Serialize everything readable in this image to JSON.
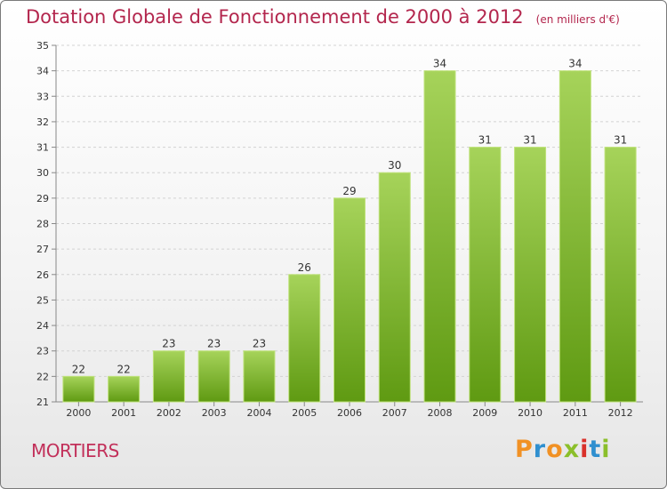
{
  "title": "Dotation Globale de Fonctionnement de 2000 à 2012",
  "unit_note": "(en milliers d'€)",
  "commune": "MORTIERS",
  "logo": {
    "letters": [
      "P",
      "r",
      "o",
      "x",
      "i",
      "t",
      "i"
    ],
    "colors": [
      "#f19124",
      "#2f8fcf",
      "#f19124",
      "#8bbf2a",
      "#d9312b",
      "#2f8fcf",
      "#8bbf2a"
    ]
  },
  "colors": {
    "title": "#b3264d",
    "bar_top": "#a6d35a",
    "bar_bottom": "#5f9a12",
    "bar_edge": "#bfe27a"
  },
  "chart_data": {
    "type": "bar",
    "categories": [
      "2000",
      "2001",
      "2002",
      "2003",
      "2004",
      "2005",
      "2006",
      "2007",
      "2008",
      "2009",
      "2010",
      "2011",
      "2012"
    ],
    "values": [
      22,
      22,
      23,
      23,
      23,
      26,
      29,
      30,
      34,
      31,
      31,
      34,
      31
    ],
    "yticks": [
      21,
      22,
      23,
      24,
      25,
      26,
      27,
      28,
      29,
      30,
      31,
      32,
      33,
      34,
      35
    ],
    "ylim": [
      21,
      35
    ],
    "grid": true,
    "data_labels": true
  }
}
